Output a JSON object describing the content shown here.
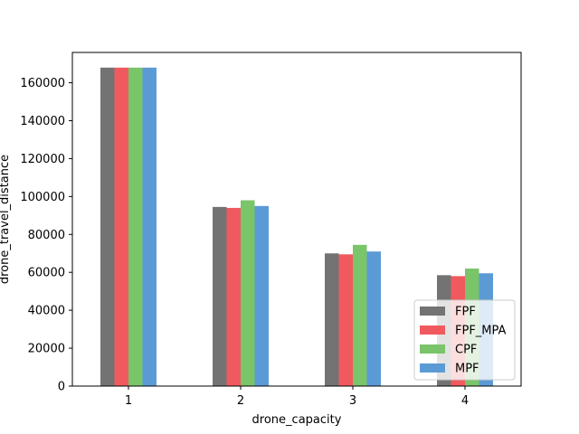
{
  "chart_data": {
    "type": "bar",
    "categories": [
      "1",
      "2",
      "3",
      "4"
    ],
    "series": [
      {
        "name": "FPF",
        "values": [
          168000,
          94500,
          70000,
          58500
        ],
        "color": "#737373"
      },
      {
        "name": "FPF_MPA",
        "values": [
          168000,
          94000,
          69500,
          58000
        ],
        "color": "#f05a5f"
      },
      {
        "name": "CPF",
        "values": [
          168000,
          98000,
          74500,
          62000
        ],
        "color": "#7ac46a"
      },
      {
        "name": "MPF",
        "values": [
          168000,
          95000,
          71000,
          59500
        ],
        "color": "#5b9bd5"
      }
    ],
    "xlabel": "drone_capacity",
    "ylabel": "drone_travel_distance",
    "ylim": [
      0,
      176000
    ],
    "yticks": [
      0,
      20000,
      40000,
      60000,
      80000,
      100000,
      120000,
      140000,
      160000
    ],
    "grid": false,
    "legend": "lower-right"
  }
}
